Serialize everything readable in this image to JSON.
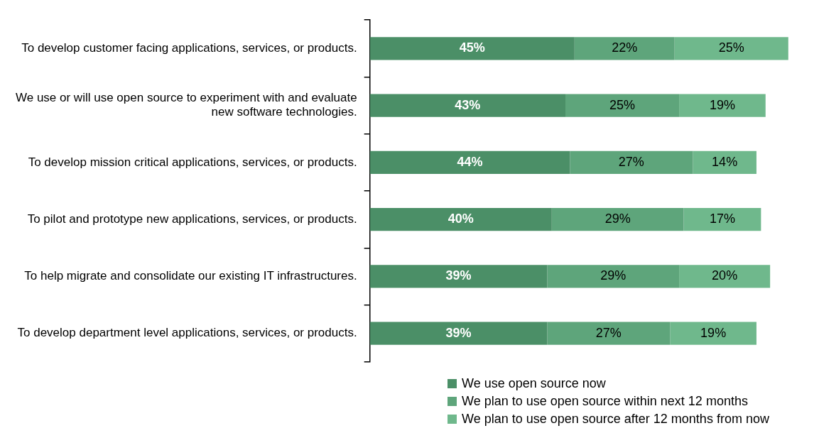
{
  "chart_data": {
    "type": "bar",
    "orientation": "horizontal",
    "stacked": true,
    "categories": [
      "To develop customer facing applications, services, or products.",
      "We use or will use open source to experiment with and evaluate new software technologies.",
      "To develop mission critical applications, services, or products.",
      "To pilot and prototype new applications, services, or products.",
      "To help migrate and consolidate our existing IT infrastructures.",
      "To develop department level applications, services, or products."
    ],
    "series": [
      {
        "name": "We use open source now",
        "color": "#4b8f67",
        "values": [
          45,
          43,
          44,
          40,
          39,
          39
        ],
        "value_labels": [
          "45%",
          "43%",
          "44%",
          "40%",
          "39%",
          "39%"
        ]
      },
      {
        "name": "We plan to use open source within next 12 months",
        "color": "#5ea57b",
        "values": [
          22,
          25,
          27,
          29,
          29,
          27
        ],
        "value_labels": [
          "22%",
          "25%",
          "27%",
          "29%",
          "29%",
          "27%"
        ]
      },
      {
        "name": "We plan to use open source after 12 months from now",
        "color": "#6fb88c",
        "values": [
          25,
          19,
          14,
          17,
          20,
          19
        ],
        "value_labels": [
          "25%",
          "19%",
          "14%",
          "17%",
          "20%",
          "19%"
        ]
      }
    ],
    "tick_labels": "y",
    "legend": "bottom"
  }
}
